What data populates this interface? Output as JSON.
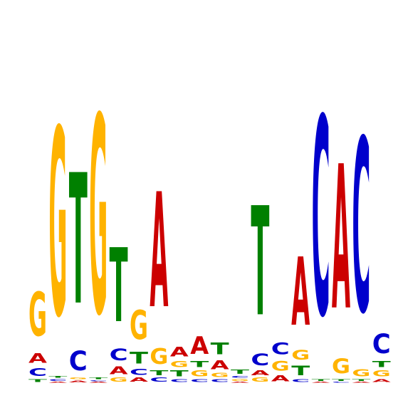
{
  "logo": {
    "type": "sequence-logo",
    "alphabet": [
      "A",
      "C",
      "G",
      "T"
    ],
    "colors": {
      "A": "#cc0000",
      "C": "#0000cc",
      "G": "#ffb300",
      "T": "#008000"
    },
    "max_height_bits": 2.0,
    "positions": [
      [
        {
          "l": "T",
          "h": 0.03
        },
        {
          "l": "C",
          "h": 0.08
        },
        {
          "l": "A",
          "h": 0.1
        },
        {
          "l": "G",
          "h": 0.45
        }
      ],
      [
        {
          "l": "A",
          "h": 0.01
        },
        {
          "l": "C",
          "h": 0.02
        },
        {
          "l": "T",
          "h": 0.02
        },
        {
          "l": "G",
          "h": 1.92
        }
      ],
      [
        {
          "l": "A",
          "h": 0.02
        },
        {
          "l": "G",
          "h": 0.02
        },
        {
          "l": "C",
          "h": 0.2
        },
        {
          "l": "T",
          "h": 1.34
        }
      ],
      [
        {
          "l": "A",
          "h": 0.01
        },
        {
          "l": "C",
          "h": 0.01
        },
        {
          "l": "T",
          "h": 0.02
        },
        {
          "l": "G",
          "h": 2.03
        }
      ],
      [
        {
          "l": "G",
          "h": 0.04
        },
        {
          "l": "A",
          "h": 0.08
        },
        {
          "l": "C",
          "h": 0.12
        },
        {
          "l": "T",
          "h": 0.76
        }
      ],
      [
        {
          "l": "A",
          "h": 0.04
        },
        {
          "l": "C",
          "h": 0.06
        },
        {
          "l": "T",
          "h": 0.12
        },
        {
          "l": "G",
          "h": 0.3
        }
      ],
      [
        {
          "l": "C",
          "h": 0.04
        },
        {
          "l": "T",
          "h": 0.05
        },
        {
          "l": "G",
          "h": 0.16
        },
        {
          "l": "A",
          "h": 1.18
        }
      ],
      [
        {
          "l": "C",
          "h": 0.03
        },
        {
          "l": "T",
          "h": 0.06
        },
        {
          "l": "G",
          "h": 0.06
        },
        {
          "l": "A",
          "h": 0.1
        }
      ],
      [
        {
          "l": "C",
          "h": 0.03
        },
        {
          "l": "G",
          "h": 0.06
        },
        {
          "l": "T",
          "h": 0.06
        },
        {
          "l": "A",
          "h": 0.18
        }
      ],
      [
        {
          "l": "C",
          "h": 0.03
        },
        {
          "l": "G",
          "h": 0.04
        },
        {
          "l": "A",
          "h": 0.09
        },
        {
          "l": "T",
          "h": 0.12
        }
      ],
      [
        {
          "l": "A",
          "h": 0.01
        },
        {
          "l": "G",
          "h": 0.02
        },
        {
          "l": "C",
          "h": 0.02
        },
        {
          "l": "T",
          "h": 0.04
        }
      ],
      [
        {
          "l": "G",
          "h": 0.04
        },
        {
          "l": "A",
          "h": 0.05
        },
        {
          "l": "C",
          "h": 0.12
        },
        {
          "l": "T",
          "h": 1.12
        }
      ],
      [
        {
          "l": "A",
          "h": 0.06
        },
        {
          "l": "G",
          "h": 0.1
        },
        {
          "l": "C",
          "h": 0.12
        }
      ],
      [
        {
          "l": "C",
          "h": 0.03
        },
        {
          "l": "T",
          "h": 0.1
        },
        {
          "l": "G",
          "h": 0.1
        },
        {
          "l": "A",
          "h": 0.7
        }
      ],
      [
        {
          "l": "A",
          "h": 0.01
        },
        {
          "l": "T",
          "h": 0.02
        },
        {
          "l": "C",
          "h": 2.03
        }
      ],
      [
        {
          "l": "C",
          "h": 0.01
        },
        {
          "l": "T",
          "h": 0.02
        },
        {
          "l": "G",
          "h": 0.15
        },
        {
          "l": "A",
          "h": 1.48
        }
      ],
      [
        {
          "l": "A",
          "h": 0.01
        },
        {
          "l": "T",
          "h": 0.02
        },
        {
          "l": "G",
          "h": 0.07
        },
        {
          "l": "C",
          "h": 1.78
        }
      ],
      [
        {
          "l": "A",
          "h": 0.03
        },
        {
          "l": "G",
          "h": 0.06
        },
        {
          "l": "T",
          "h": 0.06
        },
        {
          "l": "C",
          "h": 0.2
        }
      ]
    ]
  }
}
